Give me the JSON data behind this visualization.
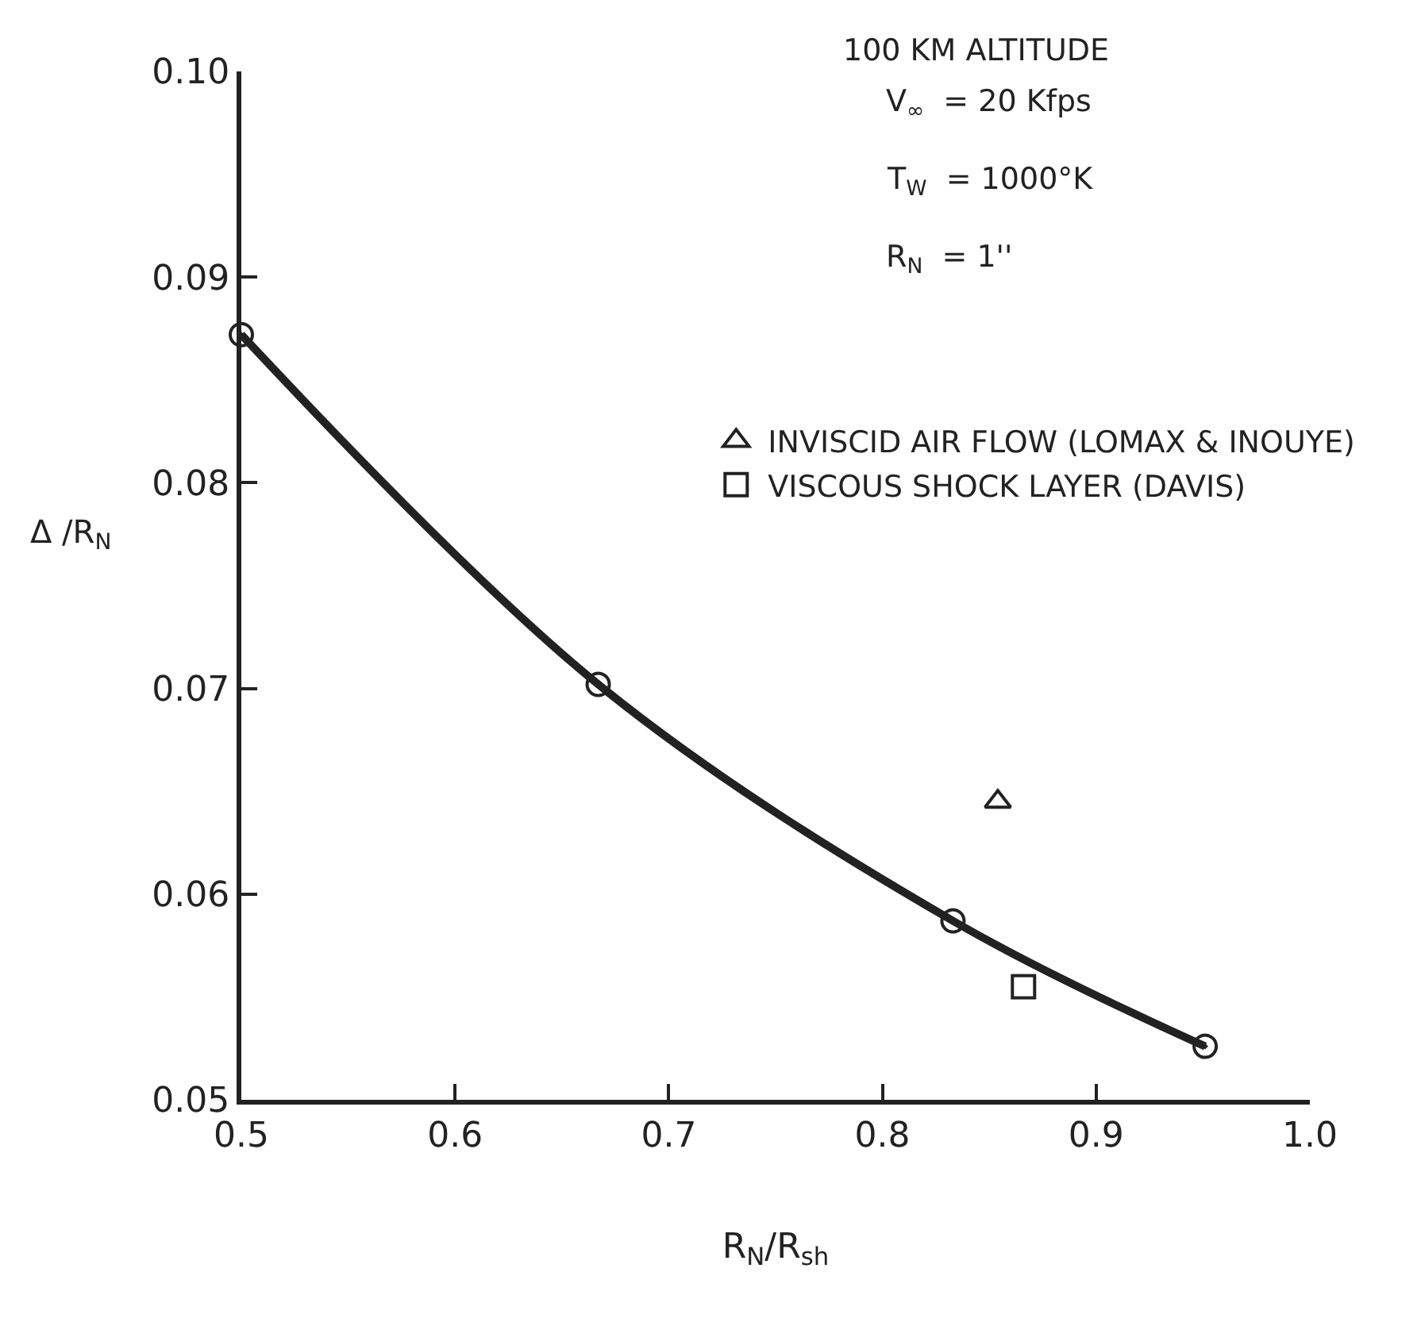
{
  "chart_data": {
    "type": "scatter",
    "xlabel": "R$_{N}$/R$_{sh}$",
    "ylabel": "Δ /R$_{N}$",
    "annotations": [
      "100 KM ALTITUDE",
      "V$_{∞}$  = 20 Kfps",
      "T$_{W}$  = 1000°K",
      "R$_{N}$  = 1''"
    ],
    "series": [
      {
        "type": "line",
        "color": "#222222",
        "marker": "circle",
        "x": [
          0.5,
          0.667,
          0.833,
          0.951
        ],
        "values": [
          0.0872,
          0.0702,
          0.0587,
          0.0526
        ]
      },
      {
        "name": "INVISCID AIR FLOW (LOMAX & INOUYE)",
        "color": "#222222",
        "marker": "triangle",
        "x": [
          0.854
        ],
        "values": [
          0.0645
        ]
      },
      {
        "name": "VISCOUS SHOCK LAYER (DAVIS)",
        "color": "#222222",
        "marker": "square",
        "x": [
          0.866
        ],
        "values": [
          0.0555
        ]
      }
    ],
    "xlim": [
      0.5,
      1.0
    ],
    "xticks": [
      {
        "value": 0.5,
        "label": "0.5"
      },
      {
        "value": 0.6,
        "label": "0.6"
      },
      {
        "value": 0.7,
        "label": "0.7"
      },
      {
        "value": 0.8,
        "label": "0.8"
      },
      {
        "value": 0.9,
        "label": "0.9"
      },
      {
        "value": 1.0,
        "label": "1.0"
      }
    ],
    "ylim": [
      0.05,
      0.1
    ],
    "yticks": [
      {
        "value": 0.05,
        "label": "0.05"
      },
      {
        "value": 0.06,
        "label": "0.06"
      },
      {
        "value": 0.07,
        "label": "0.07"
      },
      {
        "value": 0.08,
        "label": "0.08"
      },
      {
        "value": 0.09,
        "label": "0.09"
      },
      {
        "value": 0.1,
        "label": "0.10"
      }
    ],
    "legend": "top right"
  }
}
